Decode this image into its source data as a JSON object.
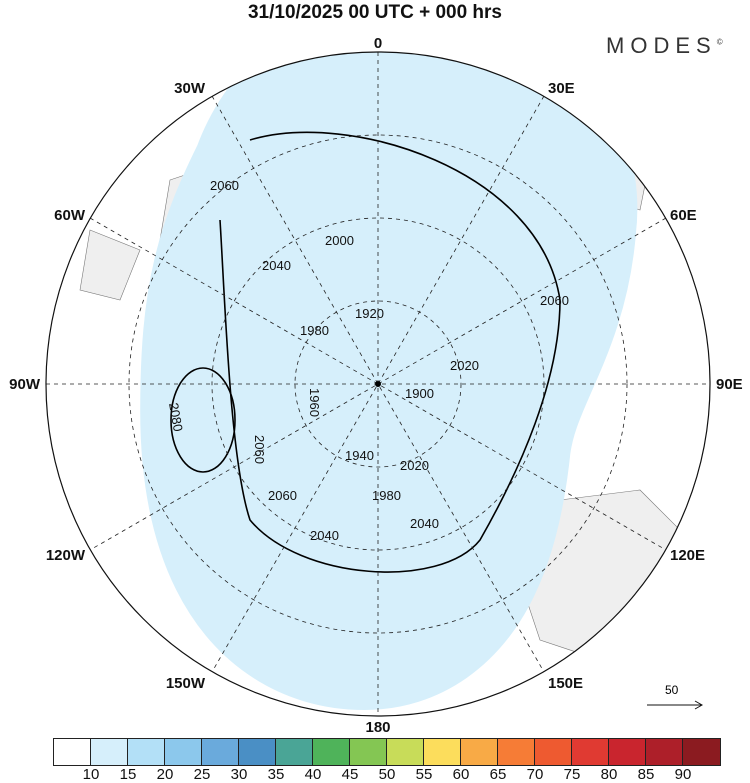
{
  "title": "31/10/2025  00 UTC  + 000 hrs",
  "logo": "MODES",
  "logo_mark": "©",
  "longitude_labels": [
    {
      "id": "0",
      "text": "0"
    },
    {
      "id": "30E",
      "text": "30E"
    },
    {
      "id": "60E",
      "text": "60E"
    },
    {
      "id": "90E",
      "text": "90E"
    },
    {
      "id": "120E",
      "text": "120E"
    },
    {
      "id": "150E",
      "text": "150E"
    },
    {
      "id": "180",
      "text": "180"
    },
    {
      "id": "150W",
      "text": "150W"
    },
    {
      "id": "120W",
      "text": "120W"
    },
    {
      "id": "90W",
      "text": "90W"
    },
    {
      "id": "60W",
      "text": "60W"
    },
    {
      "id": "30W",
      "text": "30W"
    }
  ],
  "contour_labels": [
    "2060",
    "2040",
    "2000",
    "1980",
    "1920",
    "2060",
    "1900",
    "2020",
    "2080",
    "1960",
    "1940",
    "2060",
    "2060",
    "2040",
    "2040",
    "2020",
    "1980"
  ],
  "vector_scale": "50",
  "colorbar": {
    "colors": [
      "#ffffff",
      "#d6effb",
      "#b3e0f7",
      "#8cc8ec",
      "#6aaadc",
      "#4a8fc5",
      "#4aa596",
      "#4fb35a",
      "#84c653",
      "#c8dc59",
      "#fcdd5c",
      "#f8aa46",
      "#f67c36",
      "#ee5a30",
      "#e03a32",
      "#c9252e",
      "#ad1f29",
      "#8b1b20"
    ],
    "labels": [
      "10",
      "15",
      "20",
      "25",
      "30",
      "35",
      "40",
      "45",
      "50",
      "55",
      "60",
      "65",
      "70",
      "75",
      "80",
      "85",
      "90"
    ]
  }
}
